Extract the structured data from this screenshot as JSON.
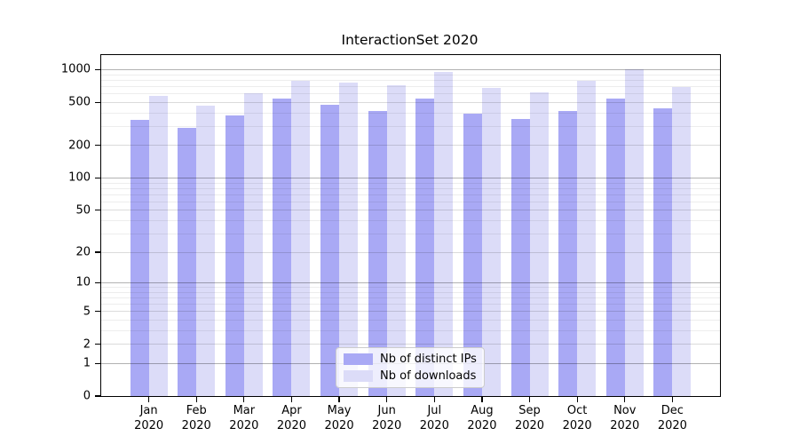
{
  "chart_data": {
    "type": "bar",
    "title": "InteractionSet 2020",
    "categories": [
      "Jan",
      "Feb",
      "Mar",
      "Apr",
      "May",
      "Jun",
      "Jul",
      "Aug",
      "Sep",
      "Oct",
      "Nov",
      "Dec"
    ],
    "category_year": "2020",
    "series": [
      {
        "name": "Nb of distinct IPs",
        "color": "#a9a9f5",
        "values": [
          345,
          292,
          378,
          540,
          478,
          414,
          540,
          392,
          350,
          420,
          543,
          444
        ]
      },
      {
        "name": "Nb of downloads",
        "color": "#dcdcf8",
        "values": [
          575,
          470,
          603,
          797,
          762,
          718,
          952,
          680,
          618,
          795,
          1000,
          697
        ]
      }
    ],
    "y_axis": {
      "scale": "log10(1+v)",
      "ticks": [
        0,
        1,
        2,
        5,
        10,
        20,
        50,
        100,
        200,
        500,
        1000
      ],
      "major_ticks": [
        1,
        10,
        100,
        1000
      ],
      "max": 1363
    },
    "xlabel": "",
    "ylabel": "",
    "grid": true,
    "legend_position": "bottom-center"
  }
}
